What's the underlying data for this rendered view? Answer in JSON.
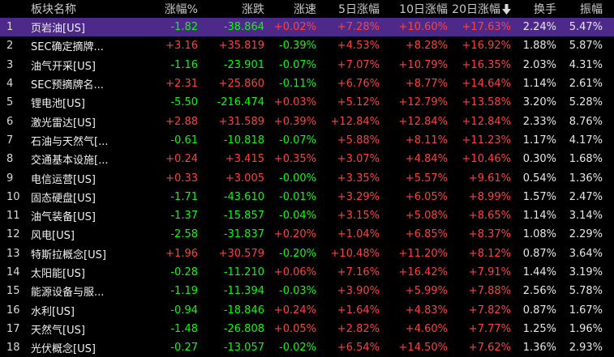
{
  "header": {
    "name": "板块名称",
    "pct": "涨幅%",
    "change": "涨跌",
    "speed": "涨速",
    "d5": "5日涨幅",
    "d10": "10日涨幅",
    "d20": "20日涨幅",
    "turnover": "换手",
    "amplitude": "振幅"
  },
  "sort_icon": "arrow-down-icon",
  "colors": {
    "up": "#ff4040",
    "down": "#00ff00",
    "selected_row": "#4d2a8a"
  },
  "rows": [
    {
      "idx": "1",
      "name": "页岩油[US]",
      "pct": "-1.82",
      "change": "-38.864",
      "speed": "+0.02%",
      "d5": "+7.28%",
      "d10": "+10.60%",
      "d20": "+17.63%",
      "turnover": "2.24%",
      "amplitude": "5.47%"
    },
    {
      "idx": "2",
      "name": "SEC确定摘牌...",
      "pct": "+3.16",
      "change": "+35.819",
      "speed": "-0.39%",
      "d5": "+4.53%",
      "d10": "+8.28%",
      "d20": "+16.92%",
      "turnover": "1.88%",
      "amplitude": "5.87%"
    },
    {
      "idx": "3",
      "name": "油气开采[US]",
      "pct": "-1.16",
      "change": "-23.901",
      "speed": "-0.07%",
      "d5": "+7.07%",
      "d10": "+10.79%",
      "d20": "+16.35%",
      "turnover": "2.03%",
      "amplitude": "4.31%"
    },
    {
      "idx": "4",
      "name": "SEC预摘牌名...",
      "pct": "+2.31",
      "change": "+25.860",
      "speed": "-0.11%",
      "d5": "+6.76%",
      "d10": "+8.77%",
      "d20": "+14.64%",
      "turnover": "1.14%",
      "amplitude": "2.61%"
    },
    {
      "idx": "5",
      "name": "锂电池[US]",
      "pct": "-5.50",
      "change": "-216.474",
      "speed": "+0.03%",
      "d5": "+5.12%",
      "d10": "+12.79%",
      "d20": "+13.58%",
      "turnover": "3.20%",
      "amplitude": "5.28%"
    },
    {
      "idx": "6",
      "name": "激光雷达[US]",
      "pct": "+2.88",
      "change": "+31.589",
      "speed": "+0.39%",
      "d5": "+12.84%",
      "d10": "+12.84%",
      "d20": "+12.84%",
      "turnover": "2.33%",
      "amplitude": "8.76%"
    },
    {
      "idx": "7",
      "name": "石油与天然气[...",
      "pct": "-0.61",
      "change": "-10.818",
      "speed": "-0.07%",
      "d5": "+5.88%",
      "d10": "+8.11%",
      "d20": "+11.23%",
      "turnover": "1.17%",
      "amplitude": "4.17%"
    },
    {
      "idx": "8",
      "name": "交通基本设施[...",
      "pct": "+0.24",
      "change": "+3.415",
      "speed": "+0.35%",
      "d5": "+3.07%",
      "d10": "+4.84%",
      "d20": "+10.46%",
      "turnover": "0.30%",
      "amplitude": "1.68%"
    },
    {
      "idx": "9",
      "name": "电信运营[US]",
      "pct": "+0.33",
      "change": "+3.005",
      "speed": "-0.00%",
      "d5": "+3.35%",
      "d10": "+5.57%",
      "d20": "+9.61%",
      "turnover": "0.54%",
      "amplitude": "1.36%"
    },
    {
      "idx": "10",
      "name": "固态硬盘[US]",
      "pct": "-1.71",
      "change": "-43.610",
      "speed": "-0.01%",
      "d5": "+3.29%",
      "d10": "+6.05%",
      "d20": "+8.99%",
      "turnover": "1.57%",
      "amplitude": "2.47%"
    },
    {
      "idx": "11",
      "name": "油气装备[US]",
      "pct": "-1.37",
      "change": "-15.857",
      "speed": "-0.04%",
      "d5": "+3.15%",
      "d10": "+5.08%",
      "d20": "+8.65%",
      "turnover": "1.14%",
      "amplitude": "3.14%"
    },
    {
      "idx": "12",
      "name": "风电[US]",
      "pct": "-2.58",
      "change": "-31.837",
      "speed": "+0.20%",
      "d5": "+1.04%",
      "d10": "+6.85%",
      "d20": "+8.37%",
      "turnover": "1.08%",
      "amplitude": "2.29%"
    },
    {
      "idx": "13",
      "name": "特斯拉概念[US]",
      "pct": "+1.96",
      "change": "+30.579",
      "speed": "-0.20%",
      "d5": "+10.48%",
      "d10": "+11.20%",
      "d20": "+8.12%",
      "turnover": "0.87%",
      "amplitude": "3.64%"
    },
    {
      "idx": "14",
      "name": "太阳能[US]",
      "pct": "-0.28",
      "change": "-11.210",
      "speed": "+0.06%",
      "d5": "+7.16%",
      "d10": "+16.42%",
      "d20": "+7.91%",
      "turnover": "1.44%",
      "amplitude": "3.19%"
    },
    {
      "idx": "15",
      "name": "能源设备与服...",
      "pct": "-1.19",
      "change": "-11.394",
      "speed": "-0.03%",
      "d5": "+3.90%",
      "d10": "+5.99%",
      "d20": "+7.88%",
      "turnover": "2.56%",
      "amplitude": "5.78%"
    },
    {
      "idx": "16",
      "name": "水利[US]",
      "pct": "-0.94",
      "change": "-18.846",
      "speed": "+0.24%",
      "d5": "+1.64%",
      "d10": "+4.83%",
      "d20": "+7.82%",
      "turnover": "0.87%",
      "amplitude": "1.67%"
    },
    {
      "idx": "17",
      "name": "天然气[US]",
      "pct": "-1.48",
      "change": "-26.808",
      "speed": "+0.05%",
      "d5": "+2.82%",
      "d10": "+4.60%",
      "d20": "+7.77%",
      "turnover": "1.25%",
      "amplitude": "1.96%"
    },
    {
      "idx": "18",
      "name": "光伏概念[US]",
      "pct": "-0.27",
      "change": "-13.057",
      "speed": "-0.02%",
      "d5": "+6.54%",
      "d10": "+14.50%",
      "d20": "+7.62%",
      "turnover": "1.36%",
      "amplitude": "2.93%"
    }
  ]
}
